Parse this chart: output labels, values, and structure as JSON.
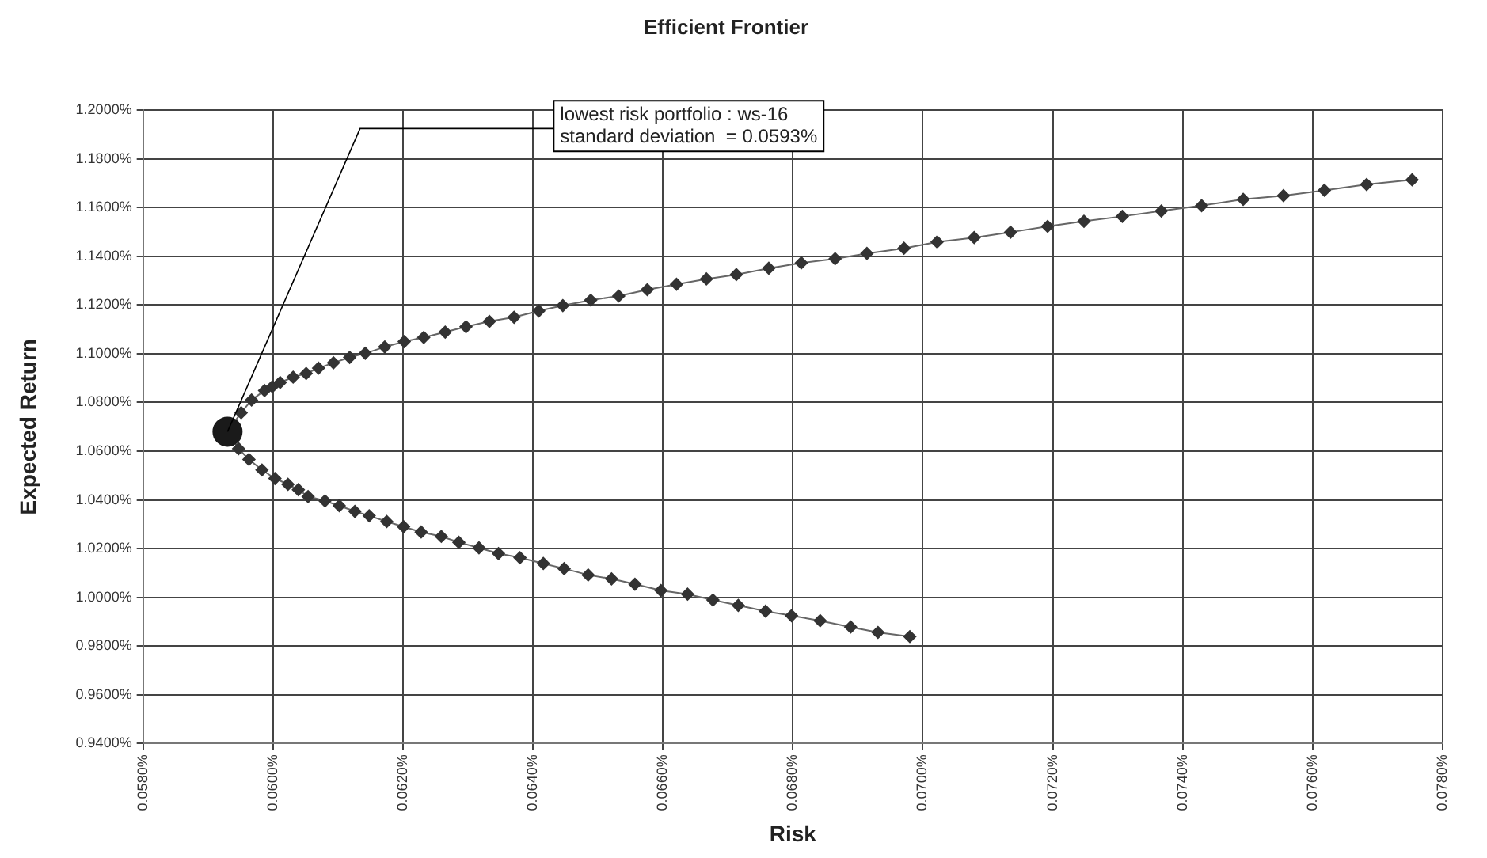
{
  "chart_data": {
    "type": "line",
    "title": "Efficient Frontier",
    "xlabel": "Risk",
    "ylabel": "Expected Return",
    "xlim": [
      0.058,
      0.078
    ],
    "xticks": [
      {
        "value": 0.058,
        "label": "0.0580%"
      },
      {
        "value": 0.06,
        "label": "0.0600%"
      },
      {
        "value": 0.062,
        "label": "0.0620%"
      },
      {
        "value": 0.064,
        "label": "0.0640%"
      },
      {
        "value": 0.066,
        "label": "0.0660%"
      },
      {
        "value": 0.068,
        "label": "0.0680%"
      },
      {
        "value": 0.07,
        "label": "0.0700%"
      },
      {
        "value": 0.072,
        "label": "0.0720%"
      },
      {
        "value": 0.074,
        "label": "0.0740%"
      },
      {
        "value": 0.076,
        "label": "0.0760%"
      },
      {
        "value": 0.078,
        "label": "0.0780%"
      }
    ],
    "ylim": [
      0.94,
      1.2
    ],
    "yticks": [
      {
        "value": 0.94,
        "label": "0.9400%"
      },
      {
        "value": 0.96,
        "label": "0.9600%"
      },
      {
        "value": 0.98,
        "label": "0.9800%"
      },
      {
        "value": 1.0,
        "label": "1.0000%"
      },
      {
        "value": 1.02,
        "label": "1.0200%"
      },
      {
        "value": 1.04,
        "label": "1.0400%"
      },
      {
        "value": 1.06,
        "label": "1.0600%"
      },
      {
        "value": 1.08,
        "label": "1.0800%"
      },
      {
        "value": 1.1,
        "label": "1.1000%"
      },
      {
        "value": 1.12,
        "label": "1.1200%"
      },
      {
        "value": 1.14,
        "label": "1.1400%"
      },
      {
        "value": 1.16,
        "label": "1.1600%"
      },
      {
        "value": 1.18,
        "label": "1.1800%"
      },
      {
        "value": 1.2,
        "label": "1.2000%"
      }
    ],
    "grid": true,
    "series": [
      {
        "color": "#333333",
        "marker": "diamond",
        "x": [
          0.0698,
          0.06931,
          0.06889,
          0.06842,
          0.06798,
          0.06758,
          0.06716,
          0.06677,
          0.06638,
          0.06597,
          0.06557,
          0.06521,
          0.06485,
          0.06448,
          0.06416,
          0.0638,
          0.06347,
          0.06317,
          0.06286,
          0.06259,
          0.06228,
          0.06201,
          0.06175,
          0.06148,
          0.06126,
          0.06102,
          0.0608,
          0.06054,
          0.06039,
          0.06023,
          0.06003,
          0.05983,
          0.05963,
          0.05947,
          0.0593,
          0.05951,
          0.05967,
          0.05987,
          0.05999,
          0.06011,
          0.06031,
          0.06051,
          0.0607,
          0.06093,
          0.06118,
          0.06142,
          0.06172,
          0.06202,
          0.06232,
          0.06265,
          0.06297,
          0.06333,
          0.06371,
          0.06409,
          0.06446,
          0.06489,
          0.06532,
          0.06576,
          0.06621,
          0.06667,
          0.06713,
          0.06763,
          0.06813,
          0.06865,
          0.06914,
          0.06971,
          0.07022,
          0.07079,
          0.07135,
          0.07192,
          0.07248,
          0.07307,
          0.07367,
          0.07429,
          0.07493,
          0.07555,
          0.07618,
          0.07683,
          0.07753
        ],
        "values": [
          0.9839,
          0.9856,
          0.9878,
          0.9904,
          0.9925,
          0.9943,
          0.9967,
          0.9989,
          1.0013,
          1.0028,
          1.0054,
          1.0076,
          1.0092,
          1.0118,
          1.0139,
          1.0163,
          1.018,
          1.0203,
          1.0226,
          1.025,
          1.0268,
          1.029,
          1.0311,
          1.0335,
          1.0353,
          1.0376,
          1.0396,
          1.0414,
          1.0442,
          1.0464,
          1.0488,
          1.0523,
          1.0566,
          1.061,
          1.068,
          1.0758,
          1.081,
          1.0849,
          1.0865,
          1.0882,
          1.0904,
          1.0919,
          1.0941,
          1.0963,
          1.0985,
          1.1002,
          1.1028,
          1.105,
          1.1067,
          1.1089,
          1.1111,
          1.1133,
          1.115,
          1.1176,
          1.1198,
          1.122,
          1.1237,
          1.1263,
          1.1285,
          1.1307,
          1.1325,
          1.1351,
          1.1373,
          1.139,
          1.1412,
          1.1433,
          1.1459,
          1.1477,
          1.1499,
          1.1523,
          1.1544,
          1.1564,
          1.1586,
          1.1608,
          1.1634,
          1.1649,
          1.1671,
          1.1695,
          1.1714
        ]
      },
      {
        "type": "scatter",
        "color": "#1a1a1a",
        "marker": "circle",
        "x": [
          0.0593
        ],
        "values": [
          1.068
        ]
      }
    ],
    "annotations": [
      {
        "text": "lowest risk portfolio : ws-16\nstandard deviation  = 0.0593%",
        "x": 0.0593,
        "y": 1.068
      }
    ]
  }
}
